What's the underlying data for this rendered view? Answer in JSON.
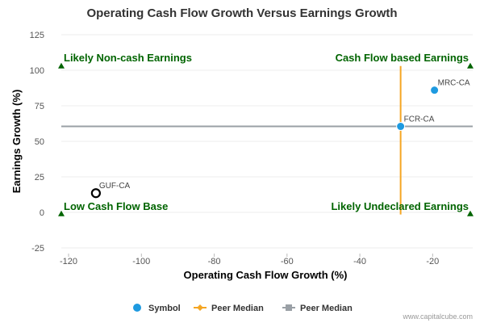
{
  "chart_data": {
    "type": "scatter",
    "title": "Operating Cash Flow Growth Versus Earnings Growth",
    "xlabel": "Operating Cash Flow Growth (%)",
    "ylabel": "Earnings Growth (%)",
    "xlim": [
      -122,
      -9
    ],
    "ylim": [
      -25,
      125
    ],
    "x_ticks": [
      "-120",
      "-100",
      "-80",
      "-60",
      "-40",
      "-20"
    ],
    "x_tick_values": [
      -120,
      -100,
      -80,
      -60,
      -40,
      -20
    ],
    "y_ticks": [
      "-25",
      "0",
      "25",
      "50",
      "75",
      "100",
      "125"
    ],
    "y_tick_values": [
      -25,
      0,
      25,
      50,
      75,
      100,
      125
    ],
    "grid": "horizontal",
    "points": [
      {
        "label": "MRC-CA",
        "x": -19.5,
        "y": 86,
        "style": "filled",
        "color": "#1e9ae0"
      },
      {
        "label": "FCR-CA",
        "x": -28.8,
        "y": 60.5,
        "style": "filled",
        "color": "#1e9ae0"
      },
      {
        "label": "GUF-CA",
        "x": -112.5,
        "y": 13.5,
        "style": "hollow",
        "color": "#000000"
      }
    ],
    "peer_median_x": -28.8,
    "peer_median_y": 60.5,
    "peer_median_x_color": "#f5a623",
    "peer_median_y_color": "#9aa0a6",
    "quadrant_labels": {
      "top_left": "Likely Non-cash Earnings",
      "top_right": "Cash Flow based Earnings",
      "bottom_left": "Low Cash Flow Base",
      "bottom_right": "Likely Undeclared Earnings"
    },
    "legend": [
      {
        "label": "Symbol",
        "color": "#1e9ae0",
        "marker": "circle"
      },
      {
        "label": "Peer Median",
        "color": "#f5a623",
        "marker": "diamond"
      },
      {
        "label": "Peer Median",
        "color": "#9aa0a6",
        "marker": "square"
      }
    ],
    "legend_position": "bottom-center",
    "credit": "www.capitalcube.com",
    "quadrant_marker_color": "#006400"
  }
}
